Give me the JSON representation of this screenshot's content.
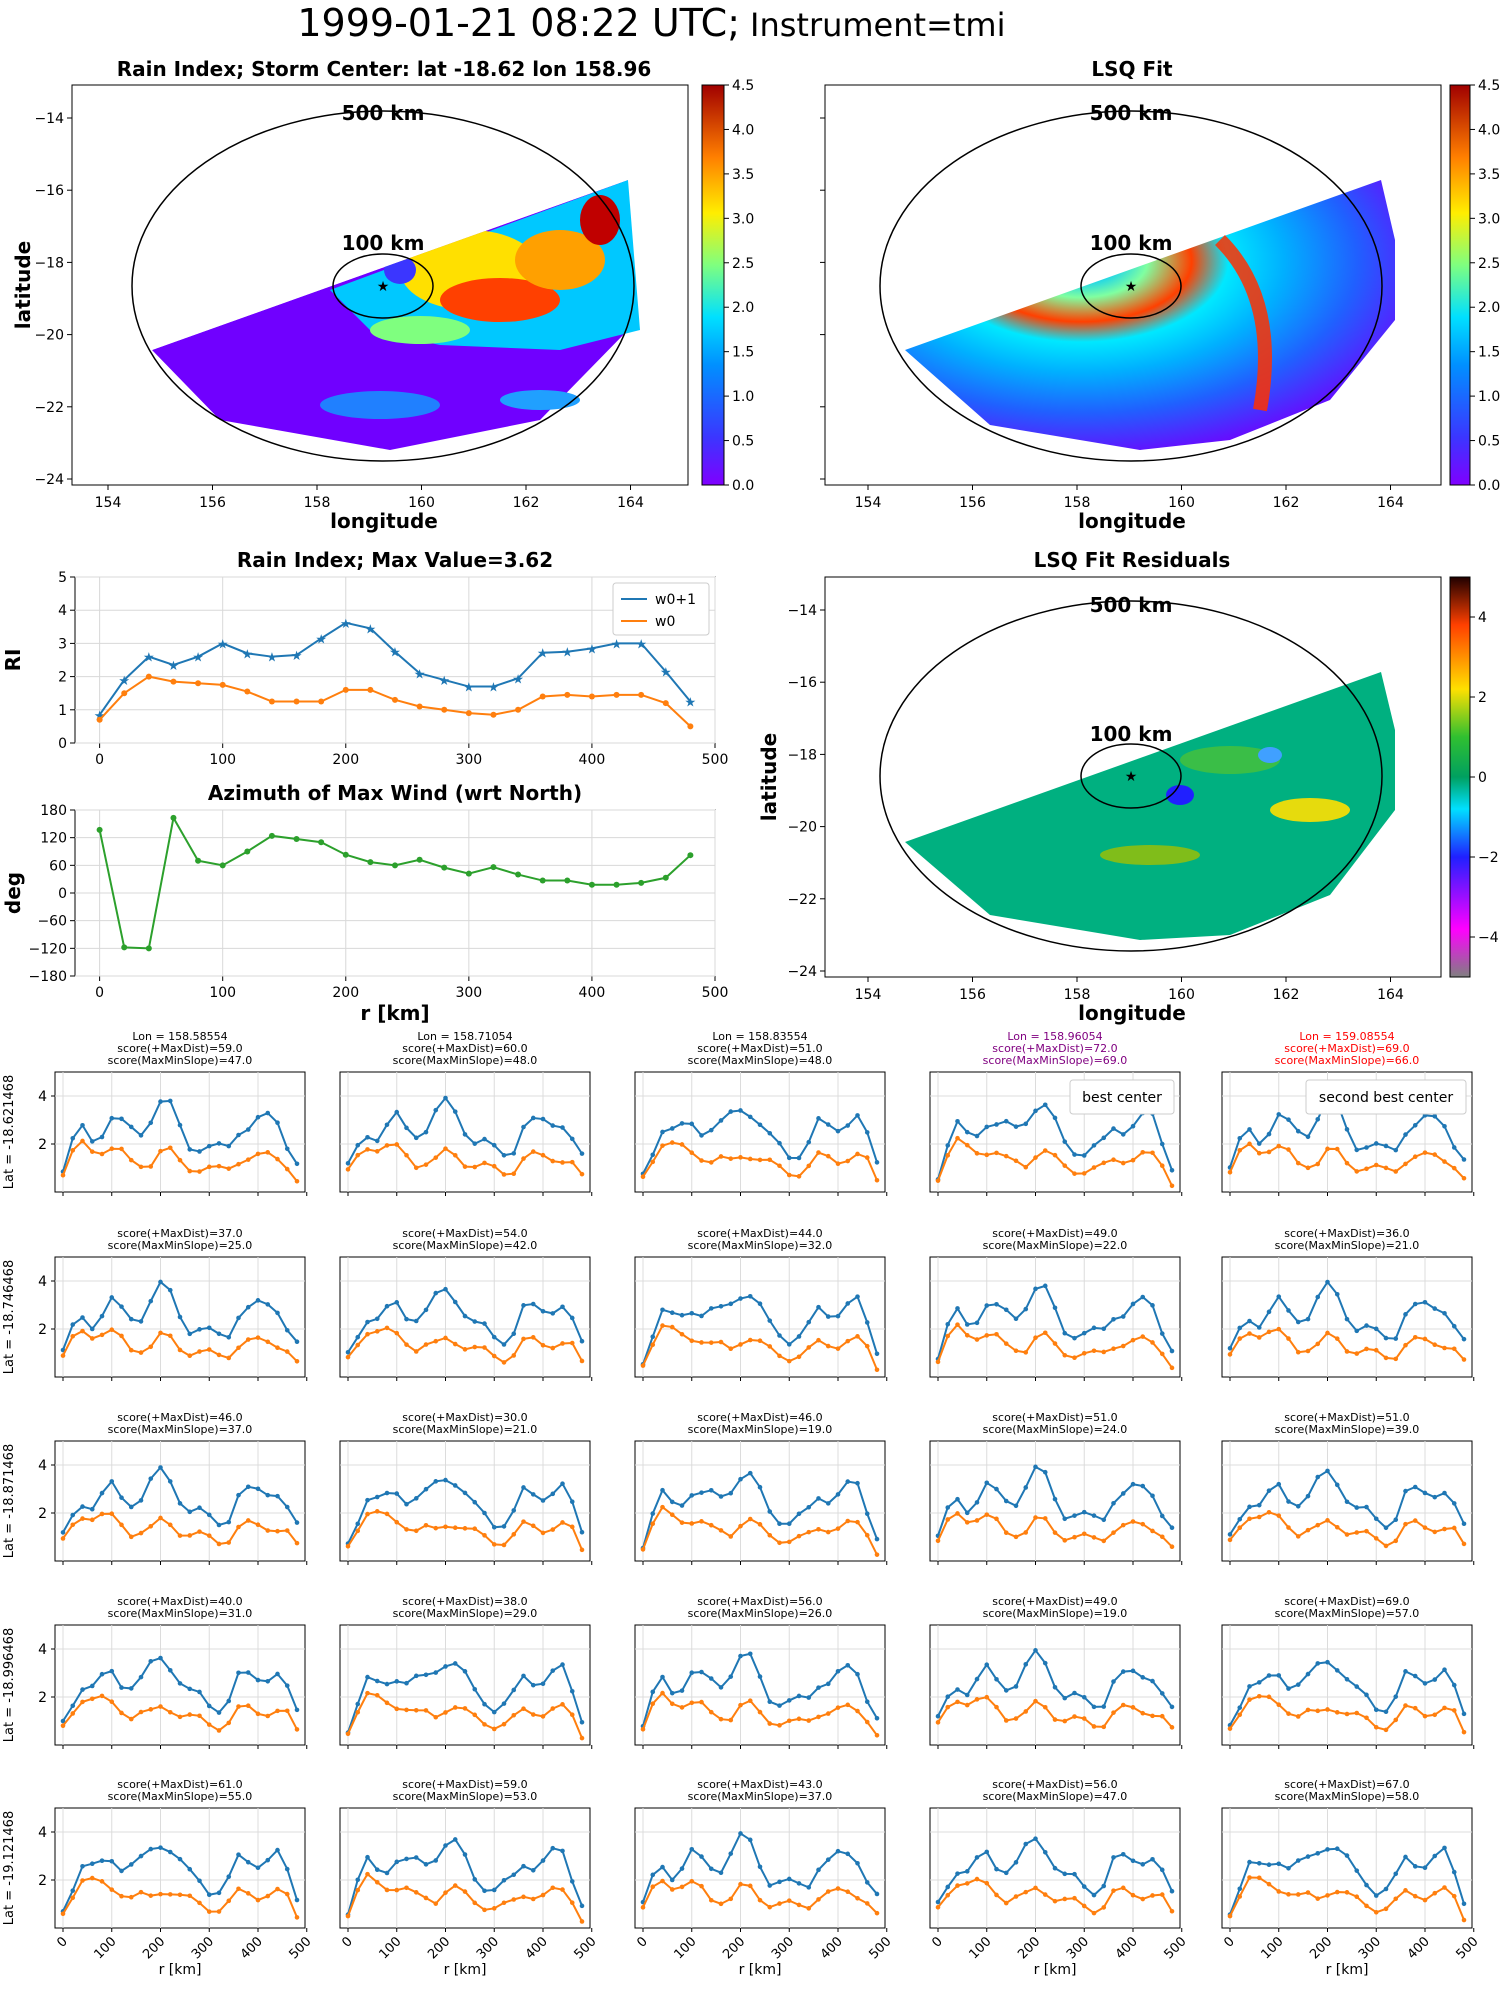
{
  "suptitle": {
    "main": "1999-01-21 08:22 UTC;",
    "instrument": "Instrument=tmi"
  },
  "maps": [
    {
      "id": "rain-index-map",
      "title": "Rain Index; Storm Center: lat -18.62 lon 158.96",
      "xlabel": "longitude",
      "ylabel": "latitude",
      "xticks": [
        "154",
        "156",
        "158",
        "160",
        "162",
        "164"
      ],
      "yticks": [
        "−14",
        "−16",
        "−18",
        "−20",
        "−22",
        "−24"
      ],
      "ring_labels": [
        "500 km",
        "100 km"
      ],
      "colorbar": {
        "ticks": [
          "0.0",
          "0.5",
          "1.0",
          "1.5",
          "2.0",
          "2.5",
          "3.0",
          "3.5",
          "4.0",
          "4.5"
        ],
        "min": 0,
        "max": 4.5,
        "cmap": "jet"
      }
    },
    {
      "id": "lsq-fit-map",
      "title": "LSQ Fit",
      "xlabel": "longitude",
      "ylabel": "",
      "xticks": [
        "154",
        "156",
        "158",
        "160",
        "162",
        "164"
      ],
      "yticks": [],
      "ring_labels": [
        "500 km",
        "100 km"
      ],
      "colorbar": {
        "ticks": [
          "0.0",
          "0.5",
          "1.0",
          "1.5",
          "2.0",
          "2.5",
          "3.0",
          "3.5",
          "4.0",
          "4.5"
        ],
        "min": 0,
        "max": 4.5,
        "cmap": "jet"
      }
    },
    {
      "id": "residuals-map",
      "title": "LSQ Fit Residuals",
      "xlabel": "longitude",
      "ylabel": "latitude",
      "xticks": [
        "154",
        "156",
        "158",
        "160",
        "162",
        "164"
      ],
      "yticks": [
        "−14",
        "−16",
        "−18",
        "−20",
        "−22",
        "−24"
      ],
      "ring_labels": [
        "500 km",
        "100 km"
      ],
      "colorbar": {
        "ticks": [
          "4",
          "2",
          "0",
          "−2",
          "−4"
        ],
        "min": -5,
        "max": 5,
        "cmap": "diverging"
      }
    }
  ],
  "chart_data": [
    {
      "type": "line",
      "title": "Rain Index; Max Value=3.62",
      "xlabel": "",
      "ylabel": "RI",
      "xlim": [
        -20,
        500
      ],
      "ylim": [
        0,
        5
      ],
      "xticks": [
        "0",
        "100",
        "200",
        "300",
        "400",
        "500"
      ],
      "yticks": [
        "0",
        "1",
        "2",
        "3",
        "4",
        "5"
      ],
      "legend": "top-right",
      "x": [
        0,
        20,
        40,
        60,
        80,
        100,
        120,
        140,
        160,
        180,
        200,
        220,
        240,
        260,
        280,
        300,
        320,
        340,
        360,
        380,
        400,
        420,
        440,
        460,
        480
      ],
      "series": [
        {
          "name": "w0+1",
          "color": "#1f77b4",
          "marker": "star",
          "values": [
            0.85,
            1.9,
            2.6,
            2.35,
            2.6,
            3.0,
            2.7,
            2.6,
            2.65,
            3.15,
            3.62,
            3.45,
            2.75,
            2.1,
            1.9,
            1.7,
            1.7,
            1.95,
            2.72,
            2.75,
            2.85,
            3.0,
            3.0,
            2.15,
            1.25
          ]
        },
        {
          "name": "w0",
          "color": "#ff7f0e",
          "marker": "dot",
          "values": [
            0.7,
            1.5,
            2.0,
            1.85,
            1.8,
            1.75,
            1.55,
            1.25,
            1.25,
            1.25,
            1.6,
            1.6,
            1.3,
            1.1,
            1.0,
            0.9,
            0.85,
            1.0,
            1.4,
            1.45,
            1.4,
            1.45,
            1.45,
            1.2,
            0.5
          ]
        }
      ]
    },
    {
      "type": "line",
      "title": "Azimuth of Max Wind (wrt North)",
      "xlabel": "r [km]",
      "ylabel": "deg",
      "xlim": [
        -20,
        500
      ],
      "ylim": [
        -180,
        180
      ],
      "xticks": [
        "0",
        "100",
        "200",
        "300",
        "400",
        "500"
      ],
      "yticks": [
        "180",
        "120",
        "60",
        "0",
        "−60",
        "−120",
        "−180"
      ],
      "x": [
        0,
        20,
        40,
        60,
        80,
        100,
        120,
        140,
        160,
        180,
        200,
        220,
        240,
        260,
        280,
        300,
        320,
        340,
        360,
        380,
        400,
        420,
        440,
        460,
        480
      ],
      "series": [
        {
          "color": "#2ca02c",
          "values": [
            137,
            -118,
            -120,
            163,
            70,
            60,
            90,
            124,
            117,
            110,
            83,
            67,
            60,
            72,
            55,
            42,
            56,
            40,
            27,
            27,
            18,
            18,
            22,
            33,
            82
          ]
        }
      ]
    }
  ],
  "grid": {
    "row_labels": [
      "Lat = -18.621468",
      "Lat = -18.746468",
      "Lat = -18.871468",
      "Lat = -18.996468",
      "Lat = -19.121468"
    ],
    "col_headers": [
      "Lon = 158.58554",
      "Lon = 158.71054",
      "Lon = 158.83554",
      "Lon = 158.96054",
      "Lon = 159.08554"
    ],
    "xlabel": "r [km]",
    "xticks": [
      "0",
      "100",
      "200",
      "300",
      "400",
      "500"
    ],
    "yticks": [
      "2",
      "4"
    ],
    "cells": [
      [
        {
          "t1": "score(+MaxDist)=59.0",
          "t2": "score(MaxMinSlope)=47.0",
          "color": "#000000"
        },
        {
          "t1": "score(+MaxDist)=60.0",
          "t2": "score(MaxMinSlope)=48.0",
          "color": "#000000"
        },
        {
          "t1": "score(+MaxDist)=51.0",
          "t2": "score(MaxMinSlope)=48.0",
          "color": "#000000"
        },
        {
          "t1": "score(+MaxDist)=72.0",
          "t2": "score(MaxMinSlope)=69.0",
          "color": "#800080",
          "legend": "best center"
        },
        {
          "t1": "score(+MaxDist)=69.0",
          "t2": "score(MaxMinSlope)=66.0",
          "color": "#ff0000",
          "legend": "second best center"
        }
      ],
      [
        {
          "t1": "score(+MaxDist)=37.0",
          "t2": "score(MaxMinSlope)=25.0"
        },
        {
          "t1": "score(+MaxDist)=54.0",
          "t2": "score(MaxMinSlope)=42.0"
        },
        {
          "t1": "score(+MaxDist)=44.0",
          "t2": "score(MaxMinSlope)=32.0"
        },
        {
          "t1": "score(+MaxDist)=49.0",
          "t2": "score(MaxMinSlope)=22.0"
        },
        {
          "t1": "score(+MaxDist)=36.0",
          "t2": "score(MaxMinSlope)=21.0"
        }
      ],
      [
        {
          "t1": "score(+MaxDist)=46.0",
          "t2": "score(MaxMinSlope)=37.0"
        },
        {
          "t1": "score(+MaxDist)=30.0",
          "t2": "score(MaxMinSlope)=21.0"
        },
        {
          "t1": "score(+MaxDist)=46.0",
          "t2": "score(MaxMinSlope)=19.0"
        },
        {
          "t1": "score(+MaxDist)=51.0",
          "t2": "score(MaxMinSlope)=24.0"
        },
        {
          "t1": "score(+MaxDist)=51.0",
          "t2": "score(MaxMinSlope)=39.0"
        }
      ],
      [
        {
          "t1": "score(+MaxDist)=40.0",
          "t2": "score(MaxMinSlope)=31.0"
        },
        {
          "t1": "score(+MaxDist)=38.0",
          "t2": "score(MaxMinSlope)=29.0"
        },
        {
          "t1": "score(+MaxDist)=56.0",
          "t2": "score(MaxMinSlope)=26.0"
        },
        {
          "t1": "score(+MaxDist)=49.0",
          "t2": "score(MaxMinSlope)=19.0"
        },
        {
          "t1": "score(+MaxDist)=69.0",
          "t2": "score(MaxMinSlope)=57.0"
        }
      ],
      [
        {
          "t1": "score(+MaxDist)=61.0",
          "t2": "score(MaxMinSlope)=55.0"
        },
        {
          "t1": "score(+MaxDist)=59.0",
          "t2": "score(MaxMinSlope)=53.0"
        },
        {
          "t1": "score(+MaxDist)=43.0",
          "t2": "score(MaxMinSlope)=37.0"
        },
        {
          "t1": "score(+MaxDist)=56.0",
          "t2": "score(MaxMinSlope)=47.0"
        },
        {
          "t1": "score(+MaxDist)=67.0",
          "t2": "score(MaxMinSlope)=58.0"
        }
      ]
    ]
  }
}
